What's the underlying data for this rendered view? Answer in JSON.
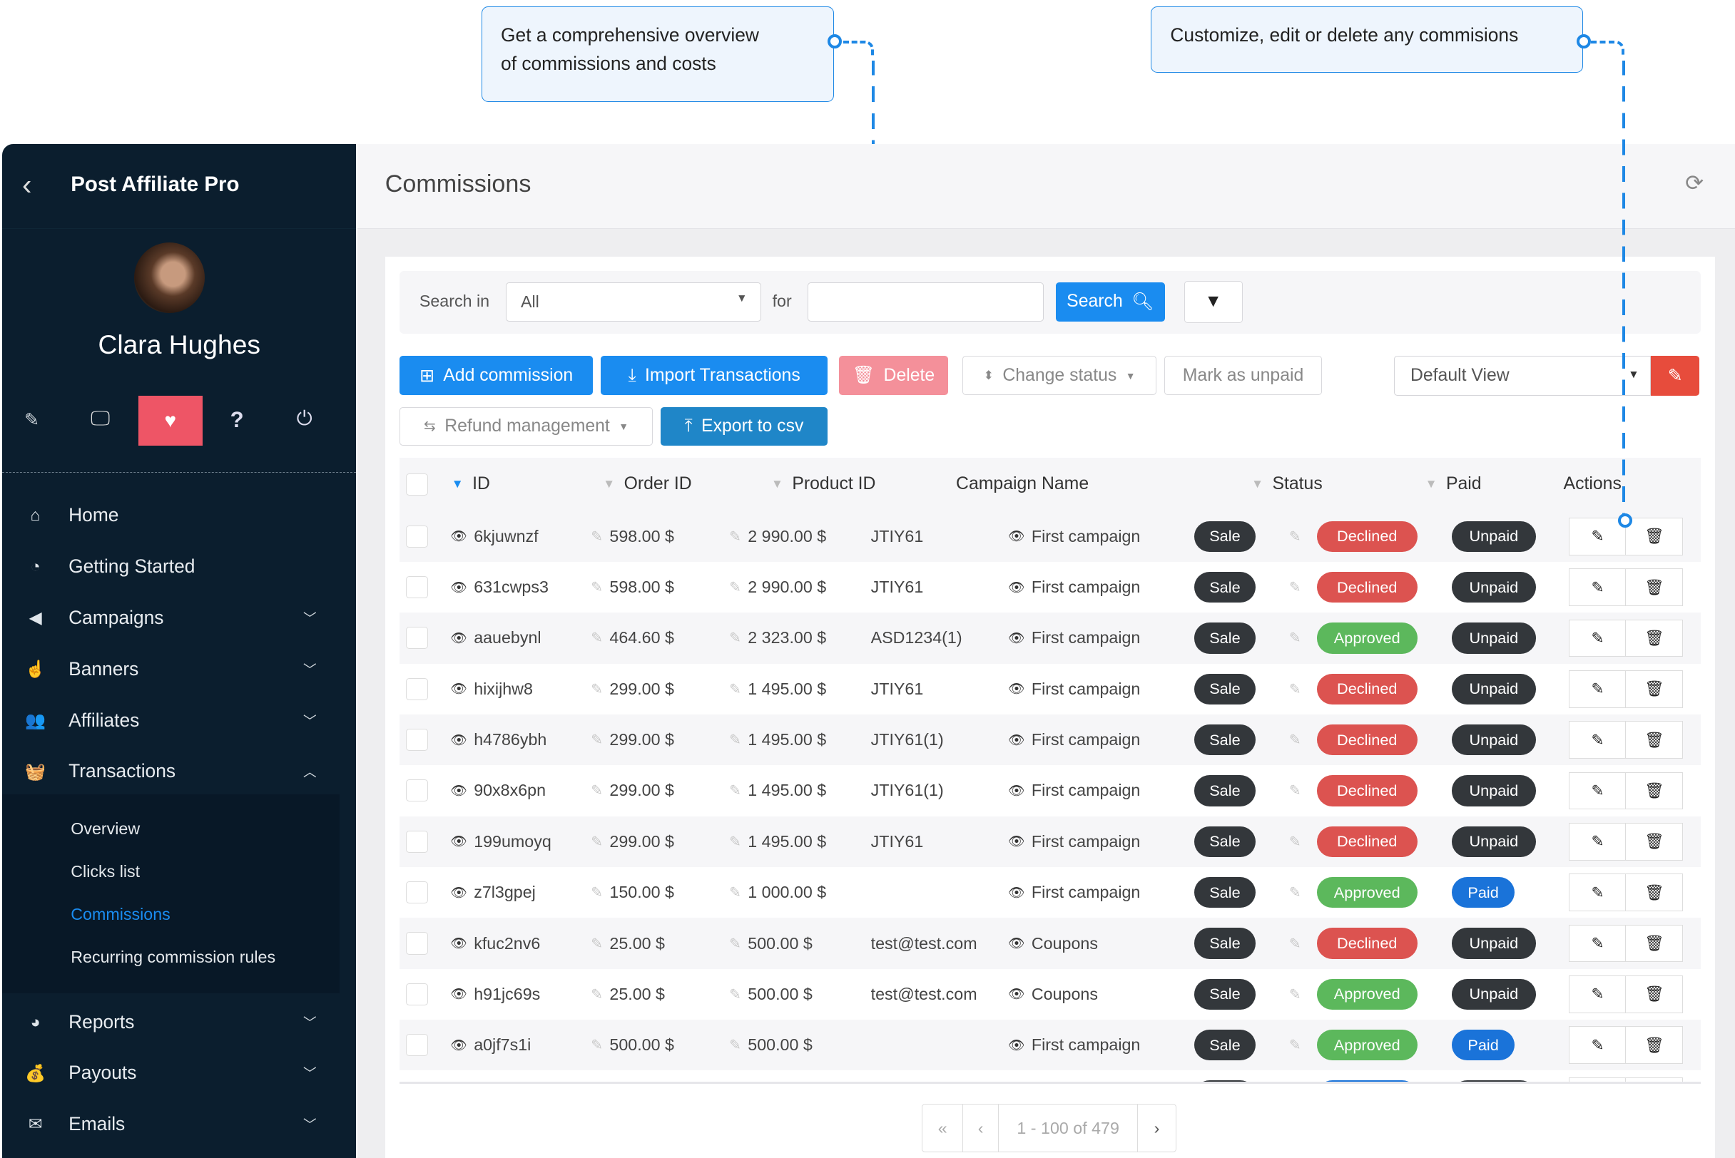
{
  "callouts": [
    {
      "line1": "Get a comprehensive overview",
      "line2": "of commissions and costs"
    },
    {
      "line1": "Customize, edit or delete any commisions"
    }
  ],
  "sidebar": {
    "app_title": "Post Affiliate Pro",
    "user_name": "Clara Hughes",
    "nav": [
      {
        "label": "Home",
        "icon": "home-icon",
        "glyph": "⌂"
      },
      {
        "label": "Getting Started",
        "icon": "stopwatch-icon",
        "glyph": "◔"
      },
      {
        "label": "Campaigns",
        "icon": "bullhorn-icon",
        "glyph": "◀",
        "chev": "﹀"
      },
      {
        "label": "Banners",
        "icon": "hand-pointer-icon",
        "glyph": "☝",
        "chev": "﹀"
      },
      {
        "label": "Affiliates",
        "icon": "users-icon",
        "glyph": "👥",
        "chev": "﹀"
      },
      {
        "label": "Transactions",
        "icon": "basket-icon",
        "glyph": "🧺",
        "chev": "︿"
      }
    ],
    "subnav": [
      "Overview",
      "Clicks list",
      "Commissions",
      "Recurring commission rules"
    ],
    "active_sub": "Commissions",
    "nav_bottom": [
      {
        "label": "Reports",
        "icon": "pie-chart-icon",
        "glyph": "◕",
        "chev": "﹀"
      },
      {
        "label": "Payouts",
        "icon": "money-bag-icon",
        "glyph": "💰",
        "chev": "﹀"
      },
      {
        "label": "Emails",
        "icon": "envelope-icon",
        "glyph": "✉",
        "chev": "﹀"
      }
    ]
  },
  "header": {
    "title": "Commissions"
  },
  "search": {
    "search_in_label": "Search in",
    "search_in_value": "All",
    "for_label": "for",
    "query": "",
    "search_button": "Search"
  },
  "toolbar": {
    "add": "Add commission",
    "import": "Import Transactions",
    "delete": "Delete",
    "change_status": "Change status",
    "mark_unpaid": "Mark as unpaid",
    "view": "Default View",
    "refund": "Refund management",
    "export": "Export to csv"
  },
  "table": {
    "columns": [
      "ID",
      "Order ID",
      "Product ID",
      "Campaign Name",
      "Status",
      "Paid",
      "Actions"
    ],
    "rows": [
      {
        "id": "6kjuwnzf",
        "commission": "598.00 $",
        "total": "2 990.00 $",
        "product": "JTIY61",
        "campaign": "First campaign",
        "type": "Sale",
        "status": "Declined",
        "paid": "Unpaid"
      },
      {
        "id": "631cwps3",
        "commission": "598.00 $",
        "total": "2 990.00 $",
        "product": "JTIY61",
        "campaign": "First campaign",
        "type": "Sale",
        "status": "Declined",
        "paid": "Unpaid"
      },
      {
        "id": "aauebynl",
        "commission": "464.60 $",
        "total": "2 323.00 $",
        "product": "ASD1234(1)",
        "campaign": "First campaign",
        "type": "Sale",
        "status": "Approved",
        "paid": "Unpaid"
      },
      {
        "id": "hixijhw8",
        "commission": "299.00 $",
        "total": "1 495.00 $",
        "product": "JTIY61",
        "campaign": "First campaign",
        "type": "Sale",
        "status": "Declined",
        "paid": "Unpaid"
      },
      {
        "id": "h4786ybh",
        "commission": "299.00 $",
        "total": "1 495.00 $",
        "product": "JTIY61(1)",
        "campaign": "First campaign",
        "type": "Sale",
        "status": "Declined",
        "paid": "Unpaid"
      },
      {
        "id": "90x8x6pn",
        "commission": "299.00 $",
        "total": "1 495.00 $",
        "product": "JTIY61(1)",
        "campaign": "First campaign",
        "type": "Sale",
        "status": "Declined",
        "paid": "Unpaid"
      },
      {
        "id": "199umoyq",
        "commission": "299.00 $",
        "total": "1 495.00 $",
        "product": "JTIY61",
        "campaign": "First campaign",
        "type": "Sale",
        "status": "Declined",
        "paid": "Unpaid"
      },
      {
        "id": "z7l3gpej",
        "commission": "150.00 $",
        "total": "1 000.00 $",
        "product": "",
        "campaign": "First campaign",
        "type": "Sale",
        "status": "Approved",
        "paid": "Paid"
      },
      {
        "id": "kfuc2nv6",
        "commission": "25.00 $",
        "total": "500.00 $",
        "product": "test@test.com",
        "campaign": "Coupons",
        "type": "Sale",
        "status": "Declined",
        "paid": "Unpaid"
      },
      {
        "id": "h91jc69s",
        "commission": "25.00 $",
        "total": "500.00 $",
        "product": "test@test.com",
        "campaign": "Coupons",
        "type": "Sale",
        "status": "Approved",
        "paid": "Unpaid"
      },
      {
        "id": "a0jf7s1i",
        "commission": "500.00 $",
        "total": "500.00 $",
        "product": "",
        "campaign": "First campaign",
        "type": "Sale",
        "status": "Approved",
        "paid": "Paid"
      }
    ]
  },
  "pagination": {
    "first": "«",
    "prev": "‹",
    "range": "1 - 100 of 479",
    "next": "›"
  },
  "colors": {
    "accent": "#1a8cf0",
    "sidebar": "#0b1e2e",
    "declined": "#dc5350",
    "approved": "#5cb85c",
    "paid": "#1a73d9",
    "dark_badge": "#33373b",
    "active_icon": "#ee5566",
    "delete": "#f4909a",
    "edit_view": "#e74c3c"
  }
}
